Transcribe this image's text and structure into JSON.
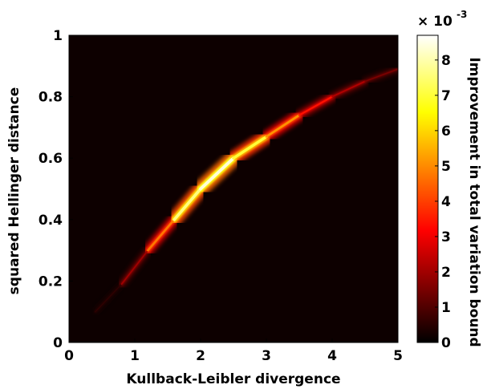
{
  "chart_data": {
    "type": "heatmap",
    "xlabel": "Kullback-Leibler divergence",
    "ylabel": "squared Hellinger distance",
    "colorbar_label": "Improvement in total variation bound",
    "colorbar_exponent": "× 10",
    "colorbar_exponent_power": "-3",
    "xlim": [
      0,
      5
    ],
    "ylim": [
      0,
      1
    ],
    "clim": [
      0,
      8.7
    ],
    "colormap": "hot",
    "x_ticks": [
      "0",
      "1",
      "2",
      "3",
      "4",
      "5"
    ],
    "y_ticks": [
      "0",
      "0.2",
      "0.4",
      "0.6",
      "0.8",
      "1"
    ],
    "colorbar_ticks": [
      "0",
      "1",
      "2",
      "3",
      "4",
      "5",
      "6",
      "7",
      "8"
    ],
    "ridge": [
      {
        "x": 0.4,
        "y": 0.1,
        "value": 0.2
      },
      {
        "x": 0.8,
        "y": 0.19,
        "value": 1.0
      },
      {
        "x": 1.2,
        "y": 0.3,
        "value": 3.0
      },
      {
        "x": 1.6,
        "y": 0.4,
        "value": 6.5
      },
      {
        "x": 2.0,
        "y": 0.5,
        "value": 8.7
      },
      {
        "x": 2.5,
        "y": 0.6,
        "value": 8.0
      },
      {
        "x": 3.0,
        "y": 0.67,
        "value": 6.0
      },
      {
        "x": 3.5,
        "y": 0.74,
        "value": 4.2
      },
      {
        "x": 4.0,
        "y": 0.8,
        "value": 2.6
      },
      {
        "x": 4.5,
        "y": 0.85,
        "value": 1.8
      },
      {
        "x": 5.0,
        "y": 0.89,
        "value": 1.3
      }
    ]
  }
}
